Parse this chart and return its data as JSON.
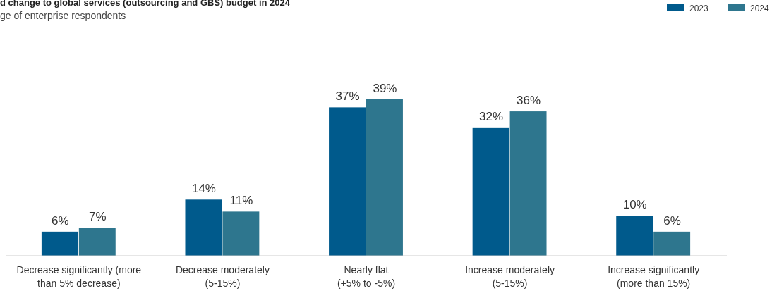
{
  "chart_data": {
    "type": "bar",
    "title": "d change to global services (outsourcing and GBS) budget in 2024",
    "subtitle": "ge of enterprise respondents",
    "categories": [
      "Decrease significantly (more\nthan 5% decrease)",
      "Decrease moderately\n(5-15%)",
      "Nearly flat\n(+5% to -5%)",
      "Increase moderately\n(5-15%)",
      "Increase significantly\n(more than 15%)"
    ],
    "series": [
      {
        "name": "2023",
        "color": "#005a8c",
        "values": [
          6,
          14,
          37,
          32,
          10
        ],
        "value_labels": [
          "6%",
          "14%",
          "37%",
          "32%",
          "10%"
        ]
      },
      {
        "name": "2024",
        "color": "#2e768e",
        "values": [
          7,
          11,
          39,
          36,
          6
        ],
        "value_labels": [
          "7%",
          "11%",
          "39%",
          "36%",
          "6%"
        ]
      }
    ],
    "legend": "top right",
    "grid": false
  }
}
